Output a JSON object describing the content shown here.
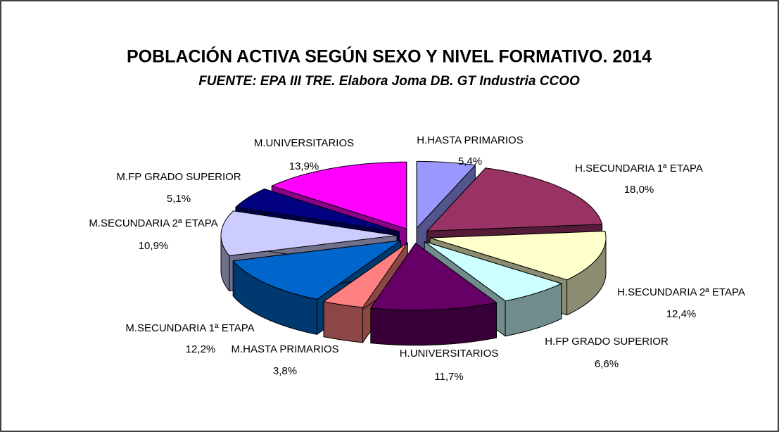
{
  "chart_data": {
    "type": "pie",
    "title": "POBLACIÓN ACTIVA SEGÚN SEXO Y NIVEL FORMATIVO. 2014",
    "subtitle": "FUENTE: EPA III TRE. Elabora Joma DB. GT Industria CCOO",
    "categories": [
      "H.HASTA PRIMARIOS",
      "H.SECUNDARIA 1ª ETAPA",
      "H.SECUNDARIA 2ª ETAPA",
      "H.FP GRADO SUPERIOR",
      "H.UNIVERSITARIOS",
      "M.HASTA PRIMARIOS",
      "M.SECUNDARIA 1ª ETAPA",
      "M.SECUNDARIA 2ª ETAPA",
      "M.FP GRADO SUPERIOR",
      "M.UNIVERSITARIOS"
    ],
    "values": [
      5.4,
      18.0,
      12.4,
      6.6,
      11.7,
      3.8,
      12.2,
      10.9,
      5.1,
      13.9
    ],
    "value_labels": [
      "5,4%",
      "18,0%",
      "12,4%",
      "6,6%",
      "11,7%",
      "3,8%",
      "12,2%",
      "10,9%",
      "5,1%",
      "13,9%"
    ],
    "colors": [
      "#9999ff",
      "#993366",
      "#ffffcc",
      "#ccffff",
      "#660066",
      "#ff8080",
      "#0066cc",
      "#ccccff",
      "#000080",
      "#ff00ff"
    ]
  }
}
